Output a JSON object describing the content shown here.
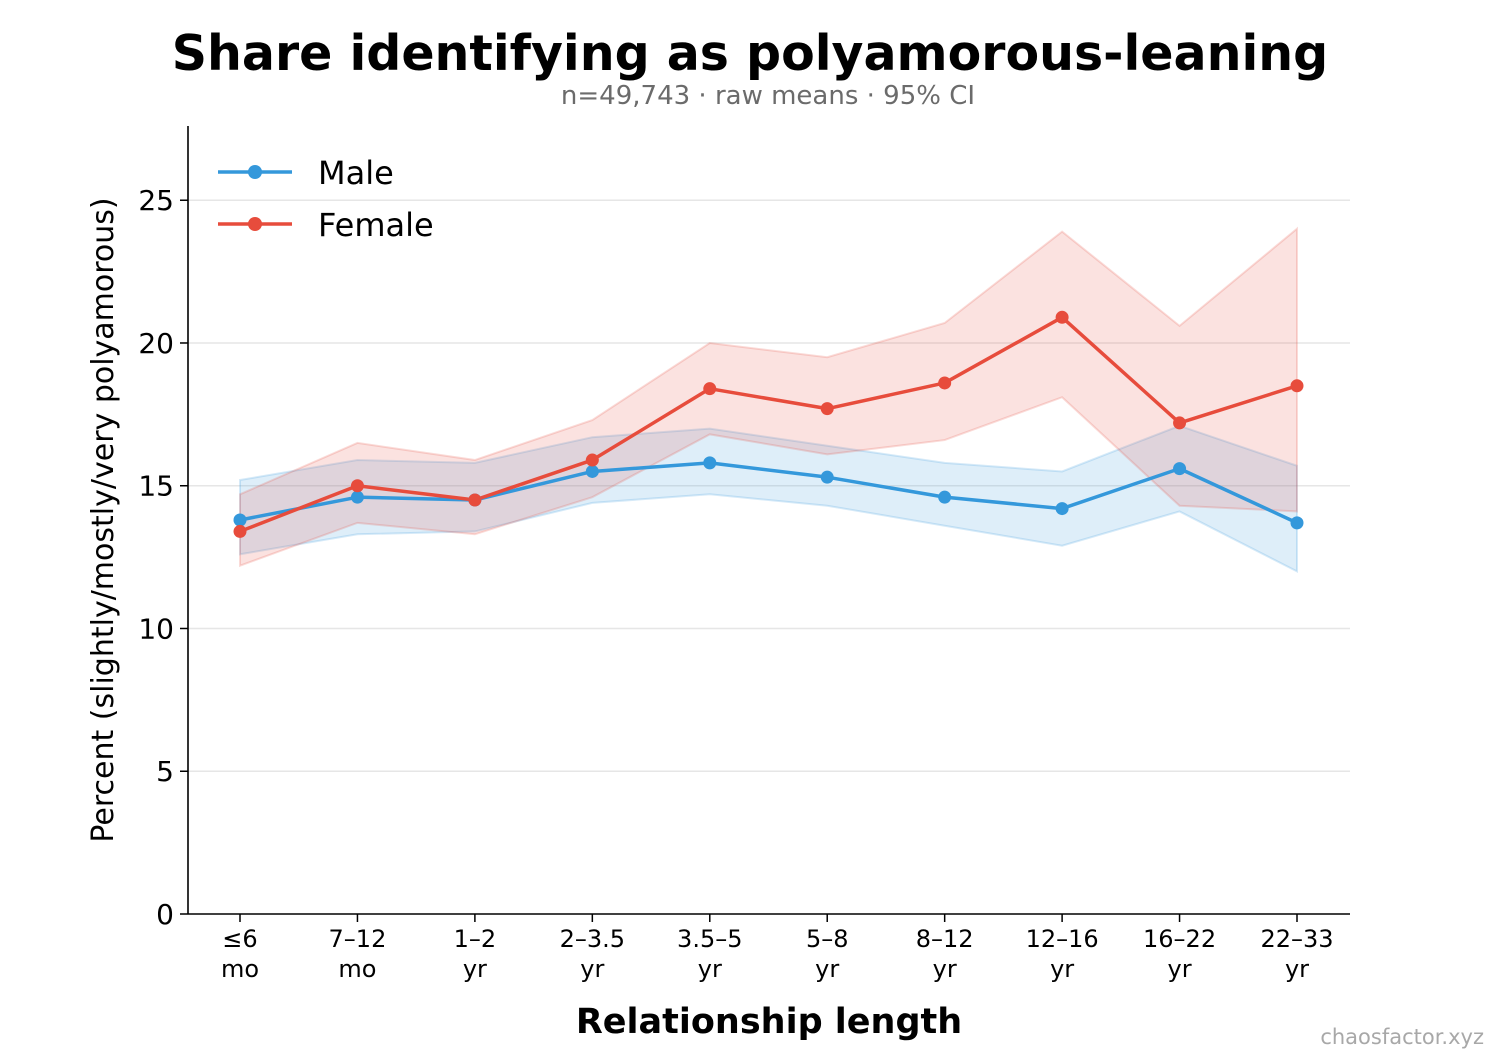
{
  "chart_data": {
    "type": "line",
    "title": "Share identifying as polyamorous-leaning",
    "subtitle": "n=49,743 · raw means · 95% CI",
    "xlabel": "Relationship length",
    "ylabel": "Percent (slightly/mostly/very polyamorous)",
    "ylim": [
      0,
      27.6
    ],
    "yticks": [
      0,
      5,
      10,
      15,
      20,
      25
    ],
    "grid": "horizontal",
    "legend_position": "top-left",
    "categories": [
      [
        "≤6",
        "mo"
      ],
      [
        "7–12",
        "mo"
      ],
      [
        "1–2",
        "yr"
      ],
      [
        "2–3.5",
        "yr"
      ],
      [
        "3.5–5",
        "yr"
      ],
      [
        "5–8",
        "yr"
      ],
      [
        "8–12",
        "yr"
      ],
      [
        "12–16",
        "yr"
      ],
      [
        "16–22",
        "yr"
      ],
      [
        "22–33",
        "yr"
      ]
    ],
    "series": [
      {
        "name": "Male",
        "color": "#3498db",
        "values": [
          13.8,
          14.6,
          14.5,
          15.5,
          15.8,
          15.3,
          14.6,
          14.2,
          15.6,
          13.7
        ],
        "ci_lower": [
          12.6,
          13.3,
          13.4,
          14.4,
          14.7,
          14.3,
          13.6,
          12.9,
          14.1,
          12.0
        ],
        "ci_upper": [
          15.2,
          15.9,
          15.8,
          16.7,
          17.0,
          16.4,
          15.8,
          15.5,
          17.1,
          15.7
        ]
      },
      {
        "name": "Female",
        "color": "#e74c3c",
        "values": [
          13.4,
          15.0,
          14.5,
          15.9,
          18.4,
          17.7,
          18.6,
          20.9,
          17.2,
          18.5
        ],
        "ci_lower": [
          12.2,
          13.7,
          13.3,
          14.6,
          16.8,
          16.1,
          16.6,
          18.1,
          14.3,
          14.1
        ],
        "ci_upper": [
          14.7,
          16.5,
          15.9,
          17.3,
          20.0,
          19.5,
          20.7,
          23.9,
          20.6,
          24.0
        ]
      }
    ]
  },
  "footer": {
    "watermark": "chaosfactor.xyz"
  }
}
